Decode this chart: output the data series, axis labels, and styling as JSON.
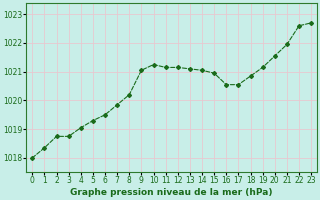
{
  "x": [
    0,
    1,
    2,
    3,
    4,
    5,
    6,
    7,
    8,
    9,
    10,
    11,
    12,
    13,
    14,
    15,
    16,
    17,
    18,
    19,
    20,
    21,
    22,
    23
  ],
  "y": [
    1018.0,
    1018.35,
    1018.75,
    1018.75,
    1019.05,
    1019.3,
    1019.5,
    1019.85,
    1020.2,
    1021.05,
    1021.25,
    1021.15,
    1021.15,
    1021.1,
    1021.05,
    1020.95,
    1020.55,
    1020.55,
    1020.85,
    1021.15,
    1021.55,
    1021.95,
    1022.6,
    1022.7
  ],
  "line_color": "#1a6b1a",
  "marker": "D",
  "markersize": 2.0,
  "linewidth": 0.8,
  "bg_color": "#c8eee8",
  "grid_color": "#e8c8d0",
  "xlabel": "Graphe pression niveau de la mer (hPa)",
  "xlabel_color": "#1a6b1a",
  "xlabel_fontsize": 6.5,
  "tick_color": "#1a6b1a",
  "tick_fontsize": 5.5,
  "ylim": [
    1017.5,
    1023.4
  ],
  "yticks": [
    1018,
    1019,
    1020,
    1021,
    1022,
    1023
  ],
  "xtick_labels": [
    "0",
    "1",
    "2",
    "3",
    "4",
    "5",
    "6",
    "7",
    "8",
    "9",
    "10",
    "11",
    "12",
    "13",
    "14",
    "15",
    "16",
    "17",
    "18",
    "19",
    "20",
    "21",
    "22",
    "23"
  ],
  "spine_color": "#2d7a2d"
}
